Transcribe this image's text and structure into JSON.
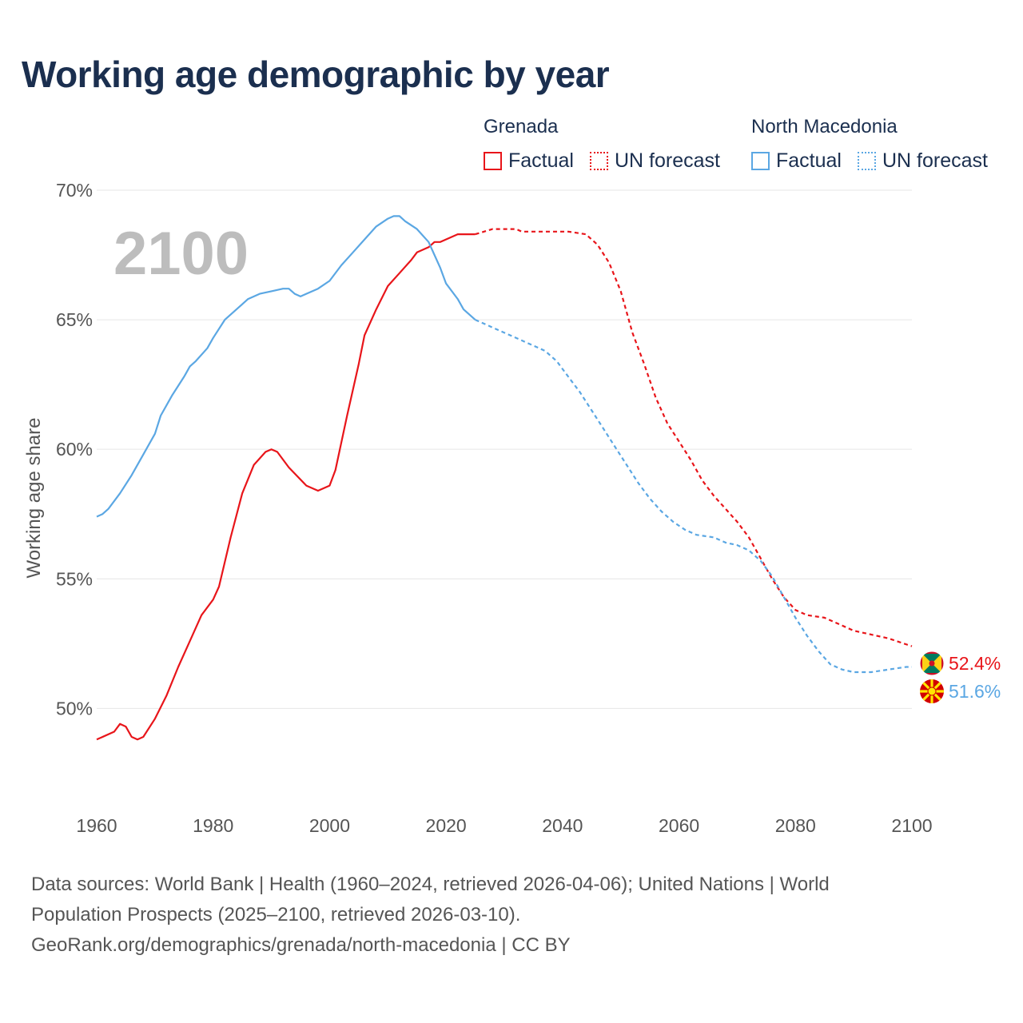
{
  "title": "Working age demographic by year",
  "legend": {
    "groups": [
      {
        "name": "Grenada",
        "color": "#e8151a",
        "factual_label": "Factual",
        "forecast_label": "UN forecast"
      },
      {
        "name": "North Macedonia",
        "color": "#5ba7e3",
        "factual_label": "Factual",
        "forecast_label": "UN forecast"
      }
    ]
  },
  "year_overlay": "2100",
  "footer": {
    "line1": "Data sources: World Bank | Health (1960–2024, retrieved 2026-04-06); United Nations | World",
    "line2": "Population Prospects (2025–2100, retrieved 2026-03-10).",
    "line3": "GeoRank.org/demographics/grenada/north-macedonia | CC BY"
  },
  "chart_data": {
    "type": "line",
    "title": "Working age demographic by year",
    "xlabel": "",
    "ylabel": "Working age share",
    "xlim": [
      1960,
      2100
    ],
    "ylim": [
      48.5,
      70.4
    ],
    "x_ticks": [
      1960,
      1980,
      2000,
      2020,
      2040,
      2060,
      2080,
      2100
    ],
    "x_tick_labels": [
      "1960",
      "1980",
      "2000",
      "2020",
      "2040",
      "2060",
      "2080",
      "2100"
    ],
    "y_ticks": [
      50,
      55,
      60,
      65,
      70
    ],
    "y_tick_labels": [
      "50%",
      "55%",
      "60%",
      "65%",
      "70%"
    ],
    "grid": true,
    "forecast_start": 2025,
    "series": [
      {
        "name": "Grenada",
        "color": "#e8151a",
        "end_label": "52.4%",
        "flag": "grenada-flag",
        "points": [
          [
            1960,
            48.8
          ],
          [
            1963,
            49.1
          ],
          [
            1964,
            49.4
          ],
          [
            1965,
            49.3
          ],
          [
            1966,
            48.9
          ],
          [
            1967,
            48.8
          ],
          [
            1968,
            48.9
          ],
          [
            1970,
            49.6
          ],
          [
            1972,
            50.5
          ],
          [
            1974,
            51.6
          ],
          [
            1976,
            52.6
          ],
          [
            1978,
            53.6
          ],
          [
            1980,
            54.2
          ],
          [
            1981,
            54.7
          ],
          [
            1983,
            56.6
          ],
          [
            1985,
            58.3
          ],
          [
            1987,
            59.4
          ],
          [
            1989,
            59.9
          ],
          [
            1990,
            60.0
          ],
          [
            1991,
            59.9
          ],
          [
            1993,
            59.3
          ],
          [
            1996,
            58.6
          ],
          [
            1998,
            58.4
          ],
          [
            2000,
            58.6
          ],
          [
            2001,
            59.2
          ],
          [
            2003,
            61.3
          ],
          [
            2005,
            63.3
          ],
          [
            2006,
            64.4
          ],
          [
            2008,
            65.4
          ],
          [
            2010,
            66.3
          ],
          [
            2012,
            66.8
          ],
          [
            2014,
            67.3
          ],
          [
            2015,
            67.6
          ],
          [
            2017,
            67.8
          ],
          [
            2018,
            68.0
          ],
          [
            2019,
            68.0
          ],
          [
            2022,
            68.3
          ],
          [
            2025,
            68.3
          ],
          [
            2028,
            68.5
          ],
          [
            2032,
            68.5
          ],
          [
            2033,
            68.4
          ],
          [
            2041,
            68.4
          ],
          [
            2044,
            68.3
          ],
          [
            2046,
            67.9
          ],
          [
            2048,
            67.2
          ],
          [
            2050,
            66.1
          ],
          [
            2052,
            64.5
          ],
          [
            2054,
            63.3
          ],
          [
            2056,
            62.0
          ],
          [
            2058,
            61.0
          ],
          [
            2060,
            60.3
          ],
          [
            2062,
            59.6
          ],
          [
            2064,
            58.8
          ],
          [
            2066,
            58.2
          ],
          [
            2068,
            57.7
          ],
          [
            2070,
            57.2
          ],
          [
            2072,
            56.6
          ],
          [
            2074,
            55.8
          ],
          [
            2076,
            55.0
          ],
          [
            2078,
            54.3
          ],
          [
            2080,
            53.8
          ],
          [
            2082,
            53.6
          ],
          [
            2085,
            53.5
          ],
          [
            2087,
            53.3
          ],
          [
            2090,
            53.0
          ],
          [
            2094,
            52.8
          ],
          [
            2096,
            52.7
          ],
          [
            2100,
            52.4
          ]
        ]
      },
      {
        "name": "North Macedonia",
        "color": "#5ba7e3",
        "end_label": "51.6%",
        "flag": "north-macedonia-flag",
        "points": [
          [
            1960,
            57.4
          ],
          [
            1961,
            57.5
          ],
          [
            1962,
            57.7
          ],
          [
            1964,
            58.3
          ],
          [
            1966,
            59.0
          ],
          [
            1968,
            59.8
          ],
          [
            1970,
            60.6
          ],
          [
            1971,
            61.3
          ],
          [
            1973,
            62.1
          ],
          [
            1975,
            62.8
          ],
          [
            1976,
            63.2
          ],
          [
            1977,
            63.4
          ],
          [
            1979,
            63.9
          ],
          [
            1980,
            64.3
          ],
          [
            1982,
            65.0
          ],
          [
            1984,
            65.4
          ],
          [
            1986,
            65.8
          ],
          [
            1988,
            66.0
          ],
          [
            1990,
            66.1
          ],
          [
            1992,
            66.2
          ],
          [
            1993,
            66.2
          ],
          [
            1994,
            66.0
          ],
          [
            1995,
            65.9
          ],
          [
            1996,
            66.0
          ],
          [
            1998,
            66.2
          ],
          [
            2000,
            66.5
          ],
          [
            2002,
            67.1
          ],
          [
            2004,
            67.6
          ],
          [
            2006,
            68.1
          ],
          [
            2008,
            68.6
          ],
          [
            2010,
            68.9
          ],
          [
            2011,
            69.0
          ],
          [
            2012,
            69.0
          ],
          [
            2013,
            68.8
          ],
          [
            2015,
            68.5
          ],
          [
            2017,
            68.0
          ],
          [
            2018,
            67.5
          ],
          [
            2019,
            67.0
          ],
          [
            2020,
            66.4
          ],
          [
            2022,
            65.8
          ],
          [
            2023,
            65.4
          ],
          [
            2025,
            65.0
          ],
          [
            2028,
            64.7
          ],
          [
            2031,
            64.4
          ],
          [
            2034,
            64.1
          ],
          [
            2037,
            63.8
          ],
          [
            2039,
            63.4
          ],
          [
            2041,
            62.8
          ],
          [
            2043,
            62.2
          ],
          [
            2045,
            61.5
          ],
          [
            2047,
            60.8
          ],
          [
            2049,
            60.1
          ],
          [
            2051,
            59.4
          ],
          [
            2053,
            58.7
          ],
          [
            2055,
            58.1
          ],
          [
            2057,
            57.6
          ],
          [
            2059,
            57.2
          ],
          [
            2061,
            56.9
          ],
          [
            2063,
            56.7
          ],
          [
            2066,
            56.6
          ],
          [
            2068,
            56.4
          ],
          [
            2070,
            56.3
          ],
          [
            2072,
            56.1
          ],
          [
            2074,
            55.7
          ],
          [
            2076,
            55.1
          ],
          [
            2078,
            54.3
          ],
          [
            2080,
            53.5
          ],
          [
            2082,
            52.8
          ],
          [
            2084,
            52.2
          ],
          [
            2086,
            51.7
          ],
          [
            2088,
            51.5
          ],
          [
            2090,
            51.4
          ],
          [
            2093,
            51.4
          ],
          [
            2096,
            51.5
          ],
          [
            2099,
            51.6
          ],
          [
            2100,
            51.6
          ]
        ]
      }
    ]
  }
}
